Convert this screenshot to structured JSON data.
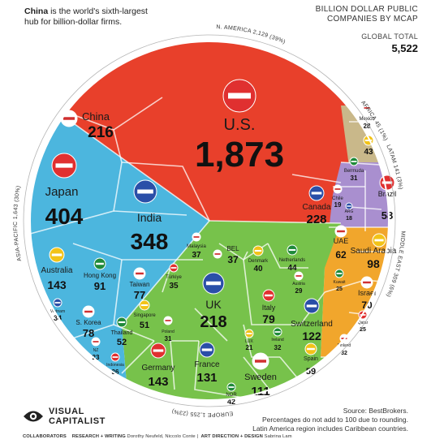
{
  "header": {
    "note_bold": "China",
    "note_rest": " is the world's sixth-largest hub for billion-dollar firms.",
    "title_line1": "BILLION DOLLAR PUBLIC",
    "title_line2": "COMPANIES BY MCAP",
    "total_label": "GLOBAL TOTAL",
    "total_value": "5,522"
  },
  "chart_data": {
    "type": "voronoi-treemap",
    "title": "BILLION DOLLAR PUBLIC COMPANIES BY MCAP",
    "total": 5522,
    "regions": [
      {
        "name": "N. AMERICA",
        "label": "N. AMERICA 2,129 (39%)",
        "total": 2129,
        "share": 39,
        "color": "#e8402b"
      },
      {
        "name": "AFRICA",
        "label": "AFRICA 45 (1%)",
        "total": 45,
        "share": 1,
        "color": "#c9b88a"
      },
      {
        "name": "LATAM",
        "label": "LATAM 141 (3%)",
        "total": 141,
        "share": 3,
        "color": "#a98fcf"
      },
      {
        "name": "MIDDLE EAST",
        "label": "MIDDLE EAST 309 (6%)",
        "total": 309,
        "share": 6,
        "color": "#f1a62c"
      },
      {
        "name": "EUROPE",
        "label": "EUROPE 1,255 (23%)",
        "total": 1255,
        "share": 23,
        "color": "#77c24b"
      },
      {
        "name": "ASIA-PACIFIC",
        "label": "ASIA-PACIFIC 1,643 (30%)",
        "total": 1643,
        "share": 30,
        "color": "#4cb6de"
      }
    ],
    "countries": [
      {
        "name": "U.S.",
        "value": "1,873",
        "region": "N. AMERICA"
      },
      {
        "name": "Canada",
        "value": "228",
        "region": "N. AMERICA"
      },
      {
        "name": "Mexico",
        "value": "28",
        "region": "N. AMERICA"
      },
      {
        "name": "",
        "value": "43",
        "region": "AFRICA"
      },
      {
        "name": "Bermuda",
        "value": "31",
        "region": "LATAM"
      },
      {
        "name": "Chile",
        "value": "19",
        "region": "LATAM"
      },
      {
        "name": "Brazil",
        "value": "58",
        "region": "LATAM"
      },
      {
        "name": "ARG",
        "value": "18",
        "region": "LATAM"
      },
      {
        "name": "UAE",
        "value": "62",
        "region": "MIDDLE EAST"
      },
      {
        "name": "Saudi Arabia",
        "value": "98",
        "region": "MIDDLE EAST"
      },
      {
        "name": "Kuwait",
        "value": "25",
        "region": "MIDDLE EAST"
      },
      {
        "name": "Israel",
        "value": "70",
        "region": "MIDDLE EAST"
      },
      {
        "name": "Qatar",
        "value": "25",
        "region": "MIDDLE EAST"
      },
      {
        "name": "UK",
        "value": "218",
        "region": "EUROPE"
      },
      {
        "name": "BEL",
        "value": "37",
        "region": "EUROPE"
      },
      {
        "name": "Denmark",
        "value": "40",
        "region": "EUROPE"
      },
      {
        "name": "Netherlands",
        "value": "44",
        "region": "EUROPE"
      },
      {
        "name": "Austria",
        "value": "29",
        "region": "EUROPE"
      },
      {
        "name": "Italy",
        "value": "79",
        "region": "EUROPE"
      },
      {
        "name": "Switzerland",
        "value": "122",
        "region": "EUROPE"
      },
      {
        "name": "Poland",
        "value": "31",
        "region": "EUROPE"
      },
      {
        "name": "LUX",
        "value": "21",
        "region": "EUROPE"
      },
      {
        "name": "Ireland",
        "value": "32",
        "region": "EUROPE"
      },
      {
        "name": "Finland",
        "value": "32",
        "region": "EUROPE"
      },
      {
        "name": "Germany",
        "value": "143",
        "region": "EUROPE"
      },
      {
        "name": "France",
        "value": "131",
        "region": "EUROPE"
      },
      {
        "name": "Sweden",
        "value": "111",
        "region": "EUROPE"
      },
      {
        "name": "Spain",
        "value": "59",
        "region": "EUROPE"
      },
      {
        "name": "NOR",
        "value": "42",
        "region": "EUROPE"
      },
      {
        "name": "China",
        "value": "216",
        "region": "ASIA-PACIFIC"
      },
      {
        "name": "Japan",
        "value": "404",
        "region": "ASIA-PACIFIC"
      },
      {
        "name": "India",
        "value": "348",
        "region": "ASIA-PACIFIC"
      },
      {
        "name": "Malaysia",
        "value": "37",
        "region": "ASIA-PACIFIC"
      },
      {
        "name": "Australia",
        "value": "143",
        "region": "ASIA-PACIFIC"
      },
      {
        "name": "Hong Kong",
        "value": "91",
        "region": "ASIA-PACIFIC"
      },
      {
        "name": "Taiwan",
        "value": "77",
        "region": "ASIA-PACIFIC"
      },
      {
        "name": "Türkiye",
        "value": "35",
        "region": "ASIA-PACIFIC"
      },
      {
        "name": "Vietnam",
        "value": "34",
        "region": "ASIA-PACIFIC"
      },
      {
        "name": "S. Korea",
        "value": "78",
        "region": "ASIA-PACIFIC"
      },
      {
        "name": "Singapore",
        "value": "51",
        "region": "ASIA-PACIFIC"
      },
      {
        "name": "Thailand",
        "value": "52",
        "region": "ASIA-PACIFIC"
      },
      {
        "name": "NZ",
        "value": "23",
        "region": "ASIA-PACIFIC"
      },
      {
        "name": "Indonesia",
        "value": "36",
        "region": "ASIA-PACIFIC"
      }
    ]
  },
  "footer": {
    "brand_line1": "VISUAL",
    "brand_line2": "CAPITALIST",
    "credits_collab": "COLLABORATORS",
    "credits_research_label": "RESEARCH + WRITING",
    "credits_research_names": "Dorothy Neufeld, Niccolo Conte",
    "credits_art_label": "ART DIRECTION + DESIGN",
    "credits_art_names": "Sabrina Lam",
    "source_line1": "Source: BestBrokers.",
    "source_line2": "Percentages do not add to 100 due to rounding.",
    "source_line3": "Latin America region includes Caribbean countries."
  }
}
